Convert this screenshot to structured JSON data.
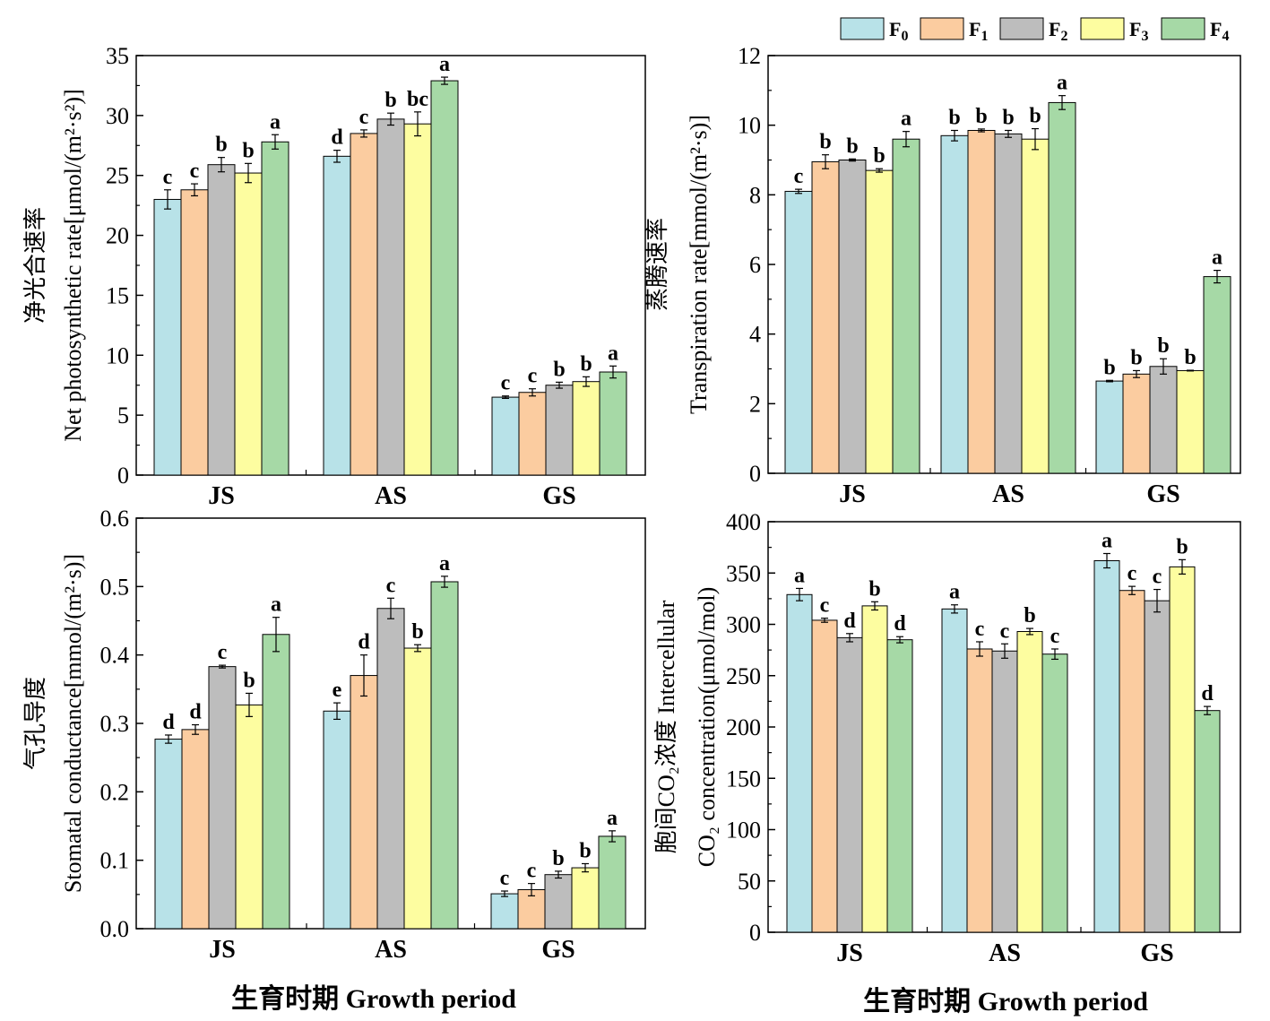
{
  "legend": {
    "entries": [
      {
        "name": "F0",
        "base": "F",
        "sub": "0",
        "color": "#b8e2e8"
      },
      {
        "name": "F1",
        "base": "F",
        "sub": "1",
        "color": "#fbcca0"
      },
      {
        "name": "F2",
        "base": "F",
        "sub": "2",
        "color": "#bdbdbd"
      },
      {
        "name": "F3",
        "base": "F",
        "sub": "3",
        "color": "#fdfda0"
      },
      {
        "name": "F4",
        "base": "F",
        "sub": "4",
        "color": "#a6d9a6"
      }
    ]
  },
  "shared_xlabel": "生育时期  Growth period",
  "chart_data": [
    {
      "type": "bar",
      "id": "net-photosynthetic-rate",
      "ylabel_cn": "净光合速率",
      "ylabel_en": "Net photosynthetic rate[μmol/(m²·s²)]",
      "ylim": [
        0,
        35
      ],
      "yticks": [
        0,
        5,
        10,
        15,
        20,
        25,
        30,
        35
      ],
      "ytick_labels": [
        "0",
        "5",
        "10",
        "15",
        "20",
        "25",
        "30",
        "35"
      ],
      "categories": [
        "JS",
        "AS",
        "GS"
      ],
      "series": [
        {
          "name": "F0",
          "values": [
            23.0,
            26.6,
            6.5
          ],
          "errors": [
            0.8,
            0.5,
            0.1
          ],
          "letters": [
            "c",
            "d",
            "c"
          ]
        },
        {
          "name": "F1",
          "values": [
            23.8,
            28.5,
            6.9
          ],
          "errors": [
            0.5,
            0.3,
            0.3
          ],
          "letters": [
            "c",
            "c",
            "c"
          ]
        },
        {
          "name": "F2",
          "values": [
            25.9,
            29.7,
            7.5
          ],
          "errors": [
            0.6,
            0.5,
            0.25
          ],
          "letters": [
            "b",
            "b",
            "b"
          ]
        },
        {
          "name": "F3",
          "values": [
            25.2,
            29.3,
            7.8
          ],
          "errors": [
            0.8,
            1.0,
            0.4
          ],
          "letters": [
            "b",
            "bc",
            "b"
          ]
        },
        {
          "name": "F4",
          "values": [
            27.8,
            32.9,
            8.6
          ],
          "errors": [
            0.6,
            0.3,
            0.5
          ],
          "letters": [
            "a",
            "a",
            "a"
          ]
        }
      ]
    },
    {
      "type": "bar",
      "id": "transpiration-rate",
      "ylabel_cn": "蒸腾速率",
      "ylabel_en": "Transpiration rate[mmol/(m²·s)]",
      "ylim": [
        0,
        12
      ],
      "yticks": [
        0,
        2,
        4,
        6,
        8,
        10,
        12
      ],
      "ytick_labels": [
        "0",
        "2",
        "4",
        "6",
        "8",
        "10",
        "12"
      ],
      "categories": [
        "JS",
        "AS",
        "GS"
      ],
      "series": [
        {
          "name": "F0",
          "values": [
            8.1,
            9.7,
            2.65
          ],
          "errors": [
            0.06,
            0.15,
            0.02
          ],
          "letters": [
            "c",
            "b",
            "b"
          ]
        },
        {
          "name": "F1",
          "values": [
            8.95,
            9.85,
            2.85
          ],
          "errors": [
            0.2,
            0.04,
            0.1
          ],
          "letters": [
            "b",
            "b",
            "b"
          ]
        },
        {
          "name": "F2",
          "values": [
            9.0,
            9.75,
            3.07
          ],
          "errors": [
            0.03,
            0.1,
            0.22
          ],
          "letters": [
            "b",
            "b",
            "b"
          ]
        },
        {
          "name": "F3",
          "values": [
            8.7,
            9.6,
            2.95
          ],
          "errors": [
            0.05,
            0.3,
            0.01
          ],
          "letters": [
            "b",
            "b",
            "b"
          ]
        },
        {
          "name": "F4",
          "values": [
            9.6,
            10.65,
            5.65
          ],
          "errors": [
            0.22,
            0.2,
            0.18
          ],
          "letters": [
            "a",
            "a",
            "a"
          ]
        }
      ]
    },
    {
      "type": "bar",
      "id": "stomatal-conductance",
      "ylabel_cn": "气孔导度",
      "ylabel_en": "Stomatal conductance[mmol/(m²·s)]",
      "ylim": [
        0,
        0.6
      ],
      "yticks": [
        0,
        0.1,
        0.2,
        0.3,
        0.4,
        0.5,
        0.6
      ],
      "ytick_labels": [
        "0.0",
        "0.1",
        "0.2",
        "0.3",
        "0.4",
        "0.5",
        "0.6"
      ],
      "categories": [
        "JS",
        "AS",
        "GS"
      ],
      "series": [
        {
          "name": "F0",
          "values": [
            0.277,
            0.318,
            0.051
          ],
          "errors": [
            0.006,
            0.012,
            0.004
          ],
          "letters": [
            "d",
            "e",
            "c"
          ]
        },
        {
          "name": "F1",
          "values": [
            0.291,
            0.37,
            0.057
          ],
          "errors": [
            0.007,
            0.03,
            0.009
          ],
          "letters": [
            "d",
            "d",
            "c"
          ]
        },
        {
          "name": "F2",
          "values": [
            0.383,
            0.468,
            0.079
          ],
          "errors": [
            0.002,
            0.015,
            0.005
          ],
          "letters": [
            "c",
            "c",
            "b"
          ]
        },
        {
          "name": "F3",
          "values": [
            0.327,
            0.41,
            0.089
          ],
          "errors": [
            0.017,
            0.005,
            0.006
          ],
          "letters": [
            "b",
            "b",
            "b"
          ]
        },
        {
          "name": "F4",
          "values": [
            0.43,
            0.507,
            0.135
          ],
          "errors": [
            0.025,
            0.008,
            0.008
          ],
          "letters": [
            "a",
            "a",
            "a"
          ]
        }
      ]
    },
    {
      "type": "bar",
      "id": "intercellular-co2-concentration",
      "ylabel_cn": "胞间CO₂浓度  Intercellular",
      "ylabel_en": "CO₂ concentration(μmol/mol)",
      "ylim": [
        0,
        400
      ],
      "yticks": [
        0,
        50,
        100,
        150,
        200,
        250,
        300,
        350,
        400
      ],
      "ytick_labels": [
        "0",
        "50",
        "100",
        "150",
        "200",
        "250",
        "300",
        "350",
        "400"
      ],
      "categories": [
        "JS",
        "AS",
        "GS"
      ],
      "series": [
        {
          "name": "F0",
          "values": [
            329,
            315,
            362
          ],
          "errors": [
            6,
            4,
            7
          ],
          "letters": [
            "a",
            "a",
            "a"
          ]
        },
        {
          "name": "F1",
          "values": [
            304,
            276,
            333
          ],
          "errors": [
            2,
            7,
            4
          ],
          "letters": [
            "c",
            "c",
            "c"
          ]
        },
        {
          "name": "F2",
          "values": [
            287,
            274,
            323
          ],
          "errors": [
            4,
            7,
            11
          ],
          "letters": [
            "d",
            "c",
            "c"
          ]
        },
        {
          "name": "F3",
          "values": [
            318,
            293,
            356
          ],
          "errors": [
            4,
            3,
            7
          ],
          "letters": [
            "b",
            "b",
            "b"
          ]
        },
        {
          "name": "F4",
          "values": [
            285,
            271,
            216
          ],
          "errors": [
            3,
            5,
            4
          ],
          "letters": [
            "d",
            "c",
            "d"
          ]
        }
      ]
    }
  ]
}
